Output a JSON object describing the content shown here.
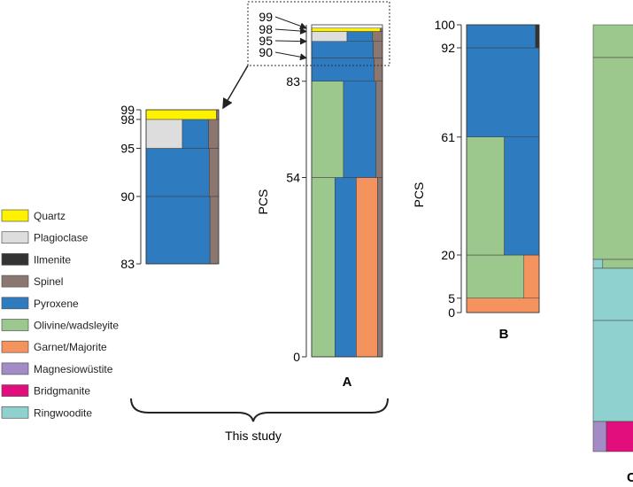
{
  "chart_data": {
    "type": "bar",
    "ylabel": "PCS",
    "legend": [
      {
        "name": "Quartz",
        "color": "#fff200"
      },
      {
        "name": "Plagioclase",
        "color": "#dddddd"
      },
      {
        "name": "Ilmenite",
        "color": "#333333"
      },
      {
        "name": "Spinel",
        "color": "#8b7670"
      },
      {
        "name": "Pyroxene",
        "color": "#2e7bc0"
      },
      {
        "name": "Olivine/wadsleyite",
        "color": "#9dc88d"
      },
      {
        "name": "Garnet/Majorite",
        "color": "#f4935e"
      },
      {
        "name": "Magnesiowüstite",
        "color": "#a38cc6"
      },
      {
        "name": "Bridgmanite",
        "color": "#e20e7e"
      },
      {
        "name": "Ringwoodite",
        "color": "#8fd1cf"
      }
    ],
    "panels": [
      {
        "id": "A",
        "label": "A",
        "ylim": [
          0,
          100
        ],
        "ticks": [
          0,
          54,
          83,
          90,
          95,
          98,
          99
        ],
        "layers": [
          {
            "from": 0,
            "to": 54,
            "phases": [
              {
                "phase": "Olivine/wadsleyite",
                "fraction": 0.33
              },
              {
                "phase": "Pyroxene",
                "fraction": 0.3
              },
              {
                "phase": "Garnet/Majorite",
                "fraction": 0.3
              },
              {
                "phase": "Spinel",
                "fraction": 0.07
              }
            ]
          },
          {
            "from": 54,
            "to": 83,
            "phases": [
              {
                "phase": "Olivine/wadsleyite",
                "fraction": 0.45
              },
              {
                "phase": "Pyroxene",
                "fraction": 0.46
              },
              {
                "phase": "Spinel",
                "fraction": 0.09
              }
            ]
          },
          {
            "from": 83,
            "to": 90,
            "phases": [
              {
                "phase": "Pyroxene",
                "fraction": 0.88
              },
              {
                "phase": "Spinel",
                "fraction": 0.12
              }
            ]
          },
          {
            "from": 90,
            "to": 95,
            "phases": [
              {
                "phase": "Pyroxene",
                "fraction": 0.87
              },
              {
                "phase": "Spinel",
                "fraction": 0.13
              }
            ]
          },
          {
            "from": 95,
            "to": 98,
            "phases": [
              {
                "phase": "Plagioclase",
                "fraction": 0.5
              },
              {
                "phase": "Pyroxene",
                "fraction": 0.36
              },
              {
                "phase": "Spinel",
                "fraction": 0.14
              }
            ]
          },
          {
            "from": 98,
            "to": 99,
            "phases": [
              {
                "phase": "Quartz",
                "fraction": 0.97
              },
              {
                "phase": "Spinel",
                "fraction": 0.03
              }
            ]
          }
        ]
      },
      {
        "id": "A-inset",
        "label": "",
        "ylim": [
          83,
          99
        ],
        "ticks": [
          83,
          90,
          95,
          98,
          99
        ],
        "layers": [
          {
            "from": 83,
            "to": 90,
            "phases": [
              {
                "phase": "Pyroxene",
                "fraction": 0.88
              },
              {
                "phase": "Spinel",
                "fraction": 0.12
              }
            ]
          },
          {
            "from": 90,
            "to": 95,
            "phases": [
              {
                "phase": "Pyroxene",
                "fraction": 0.87
              },
              {
                "phase": "Spinel",
                "fraction": 0.13
              }
            ]
          },
          {
            "from": 95,
            "to": 98,
            "phases": [
              {
                "phase": "Plagioclase",
                "fraction": 0.5
              },
              {
                "phase": "Pyroxene",
                "fraction": 0.36
              },
              {
                "phase": "Spinel",
                "fraction": 0.14
              }
            ]
          },
          {
            "from": 98,
            "to": 99,
            "phases": [
              {
                "phase": "Quartz",
                "fraction": 0.97
              },
              {
                "phase": "Spinel",
                "fraction": 0.03
              }
            ]
          }
        ]
      },
      {
        "id": "B",
        "label": "B",
        "ylim": [
          0,
          100
        ],
        "ticks": [
          0,
          5,
          20,
          61,
          92,
          100
        ],
        "layers": [
          {
            "from": 0,
            "to": 5,
            "phases": [
              {
                "phase": "Garnet/Majorite",
                "fraction": 1.0
              }
            ]
          },
          {
            "from": 5,
            "to": 20,
            "phases": [
              {
                "phase": "Olivine/wadsleyite",
                "fraction": 0.79
              },
              {
                "phase": "Garnet/Majorite",
                "fraction": 0.21
              }
            ]
          },
          {
            "from": 20,
            "to": 61,
            "phases": [
              {
                "phase": "Olivine/wadsleyite",
                "fraction": 0.52
              },
              {
                "phase": "Pyroxene",
                "fraction": 0.48
              }
            ]
          },
          {
            "from": 61,
            "to": 92,
            "phases": [
              {
                "phase": "Pyroxene",
                "fraction": 1.0
              }
            ]
          },
          {
            "from": 92,
            "to": 100,
            "phases": [
              {
                "phase": "Pyroxene",
                "fraction": 0.95
              },
              {
                "phase": "Ilmenite",
                "fraction": 0.05
              }
            ]
          }
        ]
      },
      {
        "id": "C",
        "label": "C",
        "partial": true,
        "visible_layers": [
          {
            "phases": [
              "Olivine/wadsleyite"
            ]
          },
          {
            "phases": [
              "Olivine/wadsleyite"
            ]
          },
          {
            "phases": [
              "Ringwoodite",
              "Olivine/wadsleyite"
            ]
          },
          {
            "phases": [
              "Ringwoodite"
            ]
          },
          {
            "phases": [
              "Ringwoodite"
            ]
          },
          {
            "phases": [
              "Magnesiowüstite",
              "Bridgmanite"
            ]
          }
        ]
      }
    ],
    "zoom_labels": [
      99,
      98,
      95,
      90
    ],
    "annotation": "This study"
  }
}
